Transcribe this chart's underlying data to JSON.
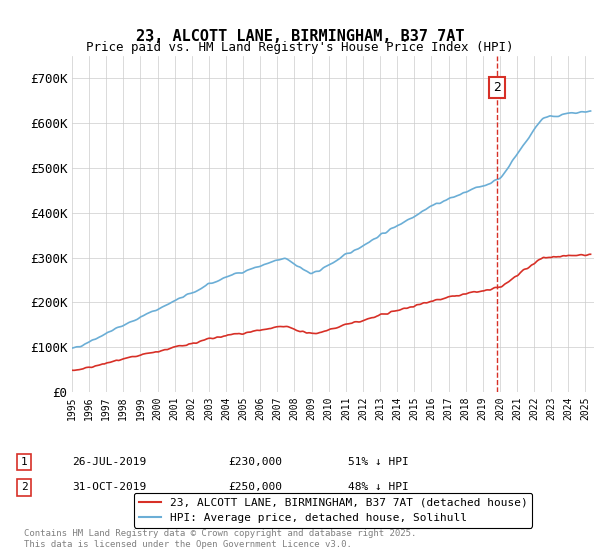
{
  "title": "23, ALCOTT LANE, BIRMINGHAM, B37 7AT",
  "subtitle": "Price paid vs. HM Land Registry's House Price Index (HPI)",
  "ylabel_ticks": [
    "£0",
    "£100K",
    "£200K",
    "£300K",
    "£400K",
    "£500K",
    "£600K",
    "£700K"
  ],
  "ytick_values": [
    0,
    100000,
    200000,
    300000,
    400000,
    500000,
    600000,
    700000
  ],
  "ylim": [
    0,
    750000
  ],
  "xlim_start": 1995.0,
  "xlim_end": 2025.5,
  "hpi_color": "#6baed6",
  "price_color": "#d73027",
  "annotation_color": "#d73027",
  "background_color": "#ffffff",
  "grid_color": "#cccccc",
  "transaction1_date": 2019.57,
  "transaction1_price": 230000,
  "transaction1_label": "1",
  "transaction2_date": 2019.83,
  "transaction2_price": 250000,
  "transaction2_label": "2",
  "legend_entries": [
    "23, ALCOTT LANE, BIRMINGHAM, B37 7AT (detached house)",
    "HPI: Average price, detached house, Solihull"
  ],
  "table_rows": [
    {
      "num": "1",
      "date": "26-JUL-2019",
      "price": "£230,000",
      "hpi": "51% ↓ HPI"
    },
    {
      "num": "2",
      "date": "31-OCT-2019",
      "price": "£250,000",
      "hpi": "48% ↓ HPI"
    }
  ],
  "footer": "Contains HM Land Registry data © Crown copyright and database right 2025.\nThis data is licensed under the Open Government Licence v3.0."
}
